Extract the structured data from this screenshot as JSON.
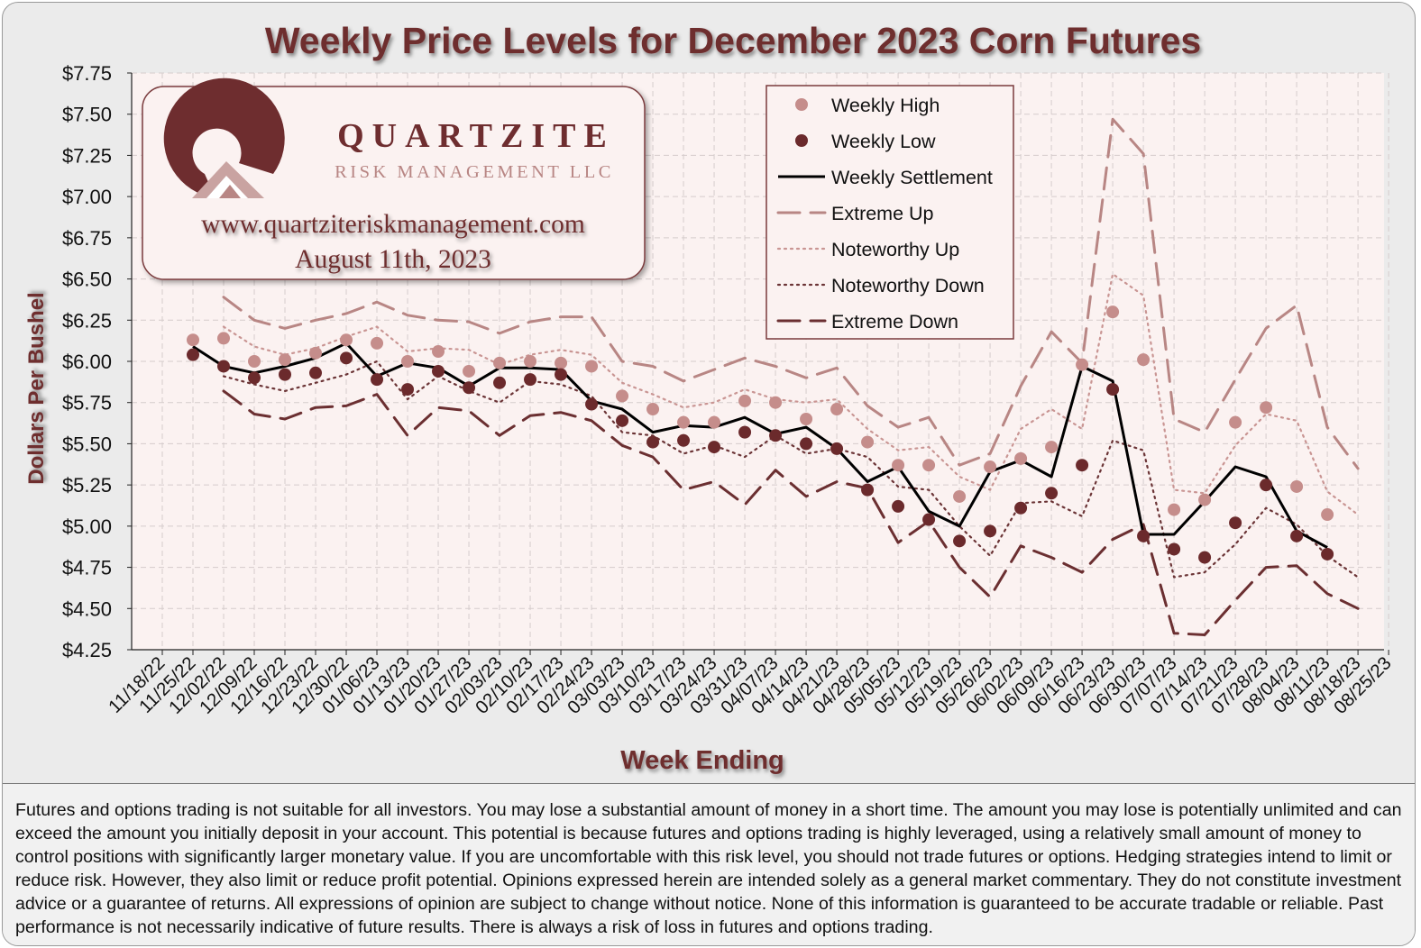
{
  "chart_data": {
    "type": "line",
    "title": "Weekly Price Levels for December 2023 Corn Futures",
    "xlabel": "Week Ending",
    "ylabel": "Dollars Per Bushel",
    "ylim": [
      4.25,
      7.75
    ],
    "ytick_step": 0.25,
    "categories": [
      "11/18/22",
      "11/25/22",
      "12/02/22",
      "12/09/22",
      "12/16/22",
      "12/23/22",
      "12/30/22",
      "01/06/23",
      "01/13/23",
      "01/20/23",
      "01/27/23",
      "02/03/23",
      "02/10/23",
      "02/17/23",
      "02/24/23",
      "03/03/23",
      "03/10/23",
      "03/17/23",
      "03/24/23",
      "03/31/23",
      "04/07/23",
      "04/14/23",
      "04/21/23",
      "04/28/23",
      "05/05/23",
      "05/12/23",
      "05/19/23",
      "05/26/23",
      "06/02/23",
      "06/09/23",
      "06/16/23",
      "06/23/23",
      "06/30/23",
      "07/07/23",
      "07/14/23",
      "07/21/23",
      "07/28/23",
      "08/04/23",
      "08/11/23",
      "08/18/23",
      "08/25/23"
    ],
    "grid": true,
    "legend_position": "top-right",
    "series": [
      {
        "name": "Weekly High",
        "style": "dot-high",
        "values": [
          null,
          6.13,
          6.14,
          6.0,
          6.01,
          6.05,
          6.13,
          6.11,
          6.0,
          6.06,
          5.94,
          5.99,
          6.0,
          5.99,
          5.97,
          5.79,
          5.71,
          5.63,
          5.63,
          5.76,
          5.75,
          5.65,
          5.71,
          5.51,
          5.37,
          5.37,
          5.18,
          5.36,
          5.41,
          5.48,
          5.98,
          6.3,
          6.01,
          5.1,
          5.16,
          5.63,
          5.72,
          5.24,
          5.07,
          null,
          null
        ]
      },
      {
        "name": "Weekly Low",
        "style": "dot-low",
        "values": [
          null,
          6.04,
          5.97,
          5.9,
          5.92,
          5.93,
          6.02,
          5.89,
          5.83,
          5.94,
          5.84,
          5.87,
          5.89,
          5.92,
          5.74,
          5.64,
          5.51,
          5.52,
          5.48,
          5.57,
          5.55,
          5.5,
          5.47,
          5.22,
          5.12,
          5.04,
          4.91,
          4.97,
          5.11,
          5.2,
          5.37,
          5.83,
          4.94,
          4.86,
          4.81,
          5.02,
          5.25,
          4.94,
          4.83,
          null,
          null
        ]
      },
      {
        "name": "Weekly Settlement",
        "style": "solid",
        "values": [
          null,
          6.09,
          5.97,
          5.93,
          5.97,
          6.02,
          6.11,
          5.91,
          5.99,
          5.96,
          5.85,
          5.96,
          5.96,
          5.95,
          5.76,
          5.71,
          5.57,
          5.61,
          5.6,
          5.66,
          5.56,
          5.6,
          5.47,
          5.27,
          5.36,
          5.09,
          5.0,
          5.33,
          5.4,
          5.3,
          5.97,
          5.88,
          4.95,
          4.95,
          5.15,
          5.36,
          5.3,
          4.97,
          4.87,
          null,
          null
        ]
      },
      {
        "name": "Extreme Up",
        "style": "long-dash-light",
        "values": [
          null,
          null,
          6.39,
          6.25,
          6.2,
          6.25,
          6.29,
          6.36,
          6.28,
          6.25,
          6.24,
          6.17,
          6.24,
          6.27,
          6.27,
          6.0,
          5.97,
          5.88,
          5.95,
          6.02,
          5.97,
          5.9,
          5.96,
          5.73,
          5.6,
          5.66,
          5.37,
          5.44,
          5.85,
          6.18,
          5.99,
          7.47,
          7.26,
          5.65,
          5.57,
          5.89,
          6.2,
          6.34,
          5.6,
          5.35,
          null
        ]
      },
      {
        "name": "Noteworthy Up",
        "style": "dotted-light",
        "values": [
          null,
          null,
          6.21,
          6.09,
          6.04,
          6.08,
          6.15,
          6.21,
          6.06,
          6.08,
          6.07,
          5.98,
          6.04,
          6.07,
          6.04,
          5.87,
          5.8,
          5.72,
          5.75,
          5.83,
          5.77,
          5.75,
          5.77,
          5.59,
          5.46,
          5.48,
          5.3,
          5.22,
          5.59,
          5.71,
          5.59,
          6.53,
          6.4,
          5.22,
          5.2,
          5.49,
          5.68,
          5.64,
          5.21,
          5.07,
          null
        ]
      },
      {
        "name": "Noteworthy Down",
        "style": "dotted-dark",
        "values": [
          null,
          null,
          5.91,
          5.86,
          5.82,
          5.87,
          5.92,
          6.0,
          5.77,
          5.91,
          5.82,
          5.75,
          5.88,
          5.86,
          5.79,
          5.57,
          5.55,
          5.44,
          5.49,
          5.42,
          5.55,
          5.44,
          5.47,
          5.42,
          5.24,
          5.22,
          5.0,
          4.82,
          5.14,
          5.15,
          5.06,
          5.52,
          5.46,
          4.69,
          4.72,
          4.89,
          5.11,
          5.01,
          4.82,
          4.69,
          null
        ]
      },
      {
        "name": "Extreme Down",
        "style": "long-dash-dark",
        "values": [
          null,
          null,
          5.82,
          5.68,
          5.65,
          5.72,
          5.73,
          5.8,
          5.55,
          5.72,
          5.7,
          5.55,
          5.67,
          5.69,
          5.64,
          5.49,
          5.42,
          5.22,
          5.27,
          5.13,
          5.34,
          5.18,
          5.27,
          5.23,
          4.9,
          5.03,
          4.75,
          4.57,
          4.88,
          4.81,
          4.72,
          4.92,
          5.01,
          4.35,
          4.34,
          4.55,
          4.75,
          4.76,
          4.59,
          4.5,
          null
        ]
      }
    ]
  },
  "logo": {
    "name": "QUARTZITE",
    "sub": "RISK MANAGEMENT LLC",
    "url": "www.quartziteriskmanagement.com",
    "date": "August 11th, 2023"
  },
  "disclaimer": "Futures and options trading is not suitable for all investors. You may lose a substantial amount of money in a short time.  The amount you may lose is potentially unlimited and can exceed the amount you initially deposit in your account. This potential is because futures and options trading is highly leveraged, using a relatively small amount of money to control positions with significantly larger monetary value. If you are uncomfortable with this risk level, you should not trade futures or options. Hedging strategies intend to limit or reduce risk. However, they also limit or reduce profit potential. Opinions expressed herein are intended solely as a general market commentary. They do not constitute investment advice or a guarantee of returns. All expressions of opinion are subject to change without notice. None of this information is guaranteed to be accurate tradable or reliable. Past performance is not necessarily indicative of future results. There is always a risk of loss in futures and options trading.",
  "colors": {
    "title": "#6e2d2f",
    "high": "#c58d8b",
    "low": "#6b2a2c",
    "settle": "#000000",
    "extreme_up": "#b88684",
    "noteworthy_up": "#c99593",
    "noteworthy_down": "#6b3436",
    "extreme_down": "#6b2f31",
    "plot_bg": "#fbf2f1",
    "grid": "#d5cccc"
  }
}
